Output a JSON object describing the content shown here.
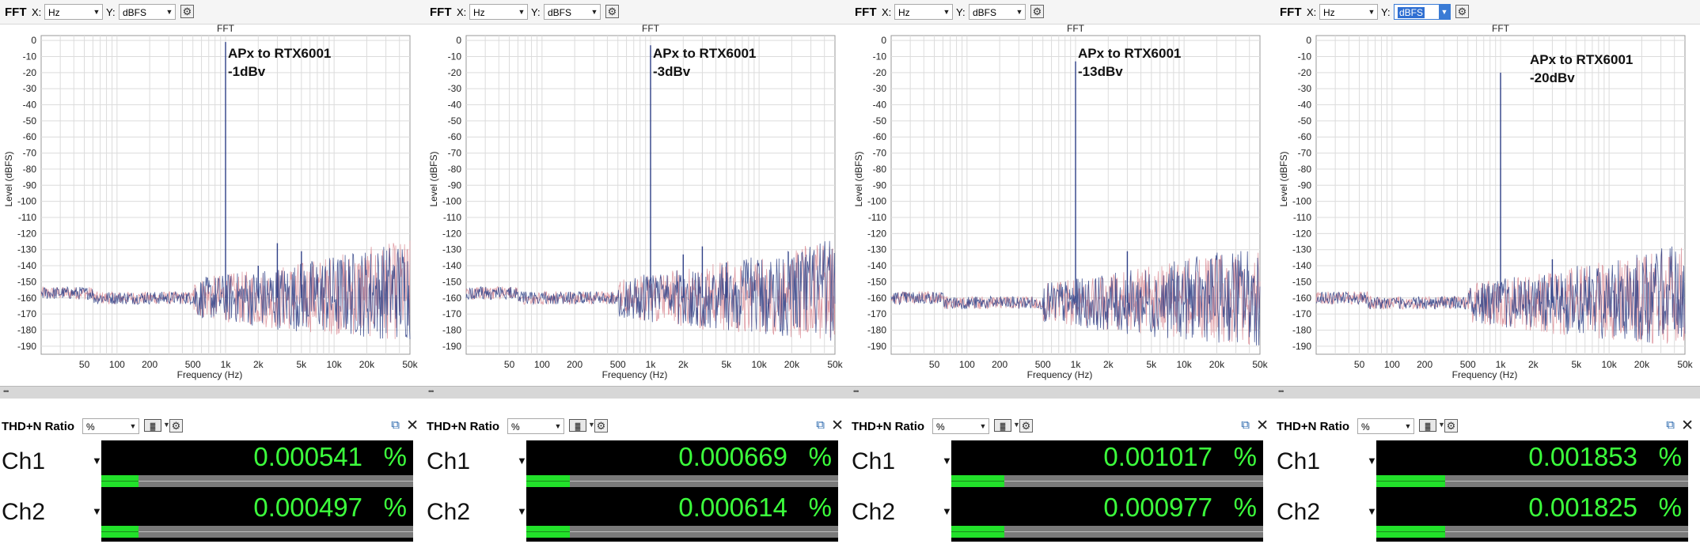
{
  "panels": [
    {
      "toolbar": {
        "title": "FFT",
        "x_label": "X:",
        "x_unit": "Hz",
        "y_label": "Y:",
        "y_unit": "dBFS",
        "y_selected": false
      },
      "chart_title": "FFT",
      "annotation": {
        "line1": "APx to RTX6001",
        "line2": "-1dBv"
      },
      "thd": {
        "title": "THD+N Ratio",
        "unit_select": "%",
        "channels": [
          {
            "name": "Ch1",
            "value": "0.000541",
            "unit": "%",
            "bar_fraction": 0.12
          },
          {
            "name": "Ch2",
            "value": "0.000497",
            "unit": "%",
            "bar_fraction": 0.12
          }
        ]
      }
    },
    {
      "toolbar": {
        "title": "FFT",
        "x_label": "X:",
        "x_unit": "Hz",
        "y_label": "Y:",
        "y_unit": "dBFS",
        "y_selected": false
      },
      "chart_title": "FFT",
      "annotation": {
        "line1": "APx to RTX6001",
        "line2": "-3dBv"
      },
      "thd": {
        "title": "THD+N Ratio",
        "unit_select": "%",
        "channels": [
          {
            "name": "Ch1",
            "value": "0.000669",
            "unit": "%",
            "bar_fraction": 0.14
          },
          {
            "name": "Ch2",
            "value": "0.000614",
            "unit": "%",
            "bar_fraction": 0.14
          }
        ]
      }
    },
    {
      "toolbar": {
        "title": "FFT",
        "x_label": "X:",
        "x_unit": "Hz",
        "y_label": "Y:",
        "y_unit": "dBFS",
        "y_selected": false
      },
      "chart_title": "FFT",
      "annotation": {
        "line1": "APx to RTX6001",
        "line2": "-13dBv"
      },
      "thd": {
        "title": "THD+N Ratio",
        "unit_select": "%",
        "channels": [
          {
            "name": "Ch1",
            "value": "0.001017",
            "unit": "%",
            "bar_fraction": 0.17
          },
          {
            "name": "Ch2",
            "value": "0.000977",
            "unit": "%",
            "bar_fraction": 0.17
          }
        ]
      }
    },
    {
      "toolbar": {
        "title": "FFT",
        "x_label": "X:",
        "x_unit": "Hz",
        "y_label": "Y:",
        "y_unit": "dBFS",
        "y_selected": true
      },
      "chart_title": "FFT",
      "annotation": {
        "line1": "APx to RTX6001",
        "line2": "-20dBv"
      },
      "thd": {
        "title": "THD+N Ratio",
        "unit_select": "%",
        "channels": [
          {
            "name": "Ch1",
            "value": "0.001853",
            "unit": "%",
            "bar_fraction": 0.22
          },
          {
            "name": "Ch2",
            "value": "0.001825",
            "unit": "%",
            "bar_fraction": 0.22
          }
        ]
      }
    }
  ],
  "colors": {
    "trace_ch1": "#2e3f86",
    "trace_ch2": "#d8848f",
    "meter_text": "#3cff3c",
    "meter_fill": "#22e12a",
    "grid": "#dcdcdc"
  },
  "chart_data": [
    {
      "type": "line",
      "title": "FFT",
      "xlabel": "Frequency (Hz)",
      "ylabel": "Level (dBFS)",
      "x_scale": "log",
      "xlim": [
        20,
        50000
      ],
      "ylim": [
        -195,
        3
      ],
      "x_ticks": [
        "50",
        "100",
        "200",
        "500",
        "1k",
        "2k",
        "5k",
        "10k",
        "20k",
        "50k"
      ],
      "y_ticks": [
        "0",
        "-10",
        "-20",
        "-30",
        "-40",
        "-50",
        "-60",
        "-70",
        "-80",
        "-90",
        "-100",
        "-110",
        "-120",
        "-130",
        "-140",
        "-150",
        "-160",
        "-170",
        "-180",
        "-190"
      ],
      "noise_floor": -160,
      "series": [
        {
          "name": "Ch1"
        },
        {
          "name": "Ch2"
        }
      ],
      "peaks": [
        {
          "x": 1000,
          "y": -1
        },
        {
          "x": 2000,
          "y": -140
        },
        {
          "x": 3000,
          "y": -126
        },
        {
          "x": 5000,
          "y": -131
        }
      ]
    },
    {
      "type": "line",
      "title": "FFT",
      "xlabel": "Frequency (Hz)",
      "ylabel": "Level (dBFS)",
      "x_scale": "log",
      "xlim": [
        20,
        50000
      ],
      "ylim": [
        -195,
        3
      ],
      "x_ticks": [
        "50",
        "100",
        "200",
        "500",
        "1k",
        "2k",
        "5k",
        "10k",
        "20k",
        "50k"
      ],
      "y_ticks": [
        "0",
        "-10",
        "-20",
        "-30",
        "-40",
        "-50",
        "-60",
        "-70",
        "-80",
        "-90",
        "-100",
        "-110",
        "-120",
        "-130",
        "-140",
        "-150",
        "-160",
        "-170",
        "-180",
        "-190"
      ],
      "noise_floor": -160,
      "series": [
        {
          "name": "Ch1"
        },
        {
          "name": "Ch2"
        }
      ],
      "peaks": [
        {
          "x": 1000,
          "y": -3
        },
        {
          "x": 2000,
          "y": -133
        },
        {
          "x": 3000,
          "y": -128
        },
        {
          "x": 5000,
          "y": -138
        }
      ]
    },
    {
      "type": "line",
      "title": "FFT",
      "xlabel": "Frequency (Hz)",
      "ylabel": "Level (dBFS)",
      "x_scale": "log",
      "xlim": [
        20,
        50000
      ],
      "ylim": [
        -195,
        3
      ],
      "x_ticks": [
        "50",
        "100",
        "200",
        "500",
        "1k",
        "2k",
        "5k",
        "10k",
        "20k",
        "50k"
      ],
      "y_ticks": [
        "0",
        "-10",
        "-20",
        "-30",
        "-40",
        "-50",
        "-60",
        "-70",
        "-80",
        "-90",
        "-100",
        "-110",
        "-120",
        "-130",
        "-140",
        "-150",
        "-160",
        "-170",
        "-180",
        "-190"
      ],
      "noise_floor": -163,
      "series": [
        {
          "name": "Ch1"
        },
        {
          "name": "Ch2"
        }
      ],
      "peaks": [
        {
          "x": 1000,
          "y": -13
        },
        {
          "x": 3000,
          "y": -131
        }
      ]
    },
    {
      "type": "line",
      "title": "FFT",
      "xlabel": "Frequency (Hz)",
      "ylabel": "Level (dBFS)",
      "x_scale": "log",
      "xlim": [
        20,
        50000
      ],
      "ylim": [
        -195,
        3
      ],
      "x_ticks": [
        "50",
        "100",
        "200",
        "500",
        "1k",
        "2k",
        "5k",
        "10k",
        "20k",
        "50k"
      ],
      "y_ticks": [
        "0",
        "-10",
        "-20",
        "-30",
        "-40",
        "-50",
        "-60",
        "-70",
        "-80",
        "-90",
        "-100",
        "-110",
        "-120",
        "-130",
        "-140",
        "-150",
        "-160",
        "-170",
        "-180",
        "-190"
      ],
      "noise_floor": -163,
      "series": [
        {
          "name": "Ch1"
        },
        {
          "name": "Ch2"
        }
      ],
      "peaks": [
        {
          "x": 1000,
          "y": -20
        },
        {
          "x": 3000,
          "y": -136
        }
      ]
    }
  ]
}
